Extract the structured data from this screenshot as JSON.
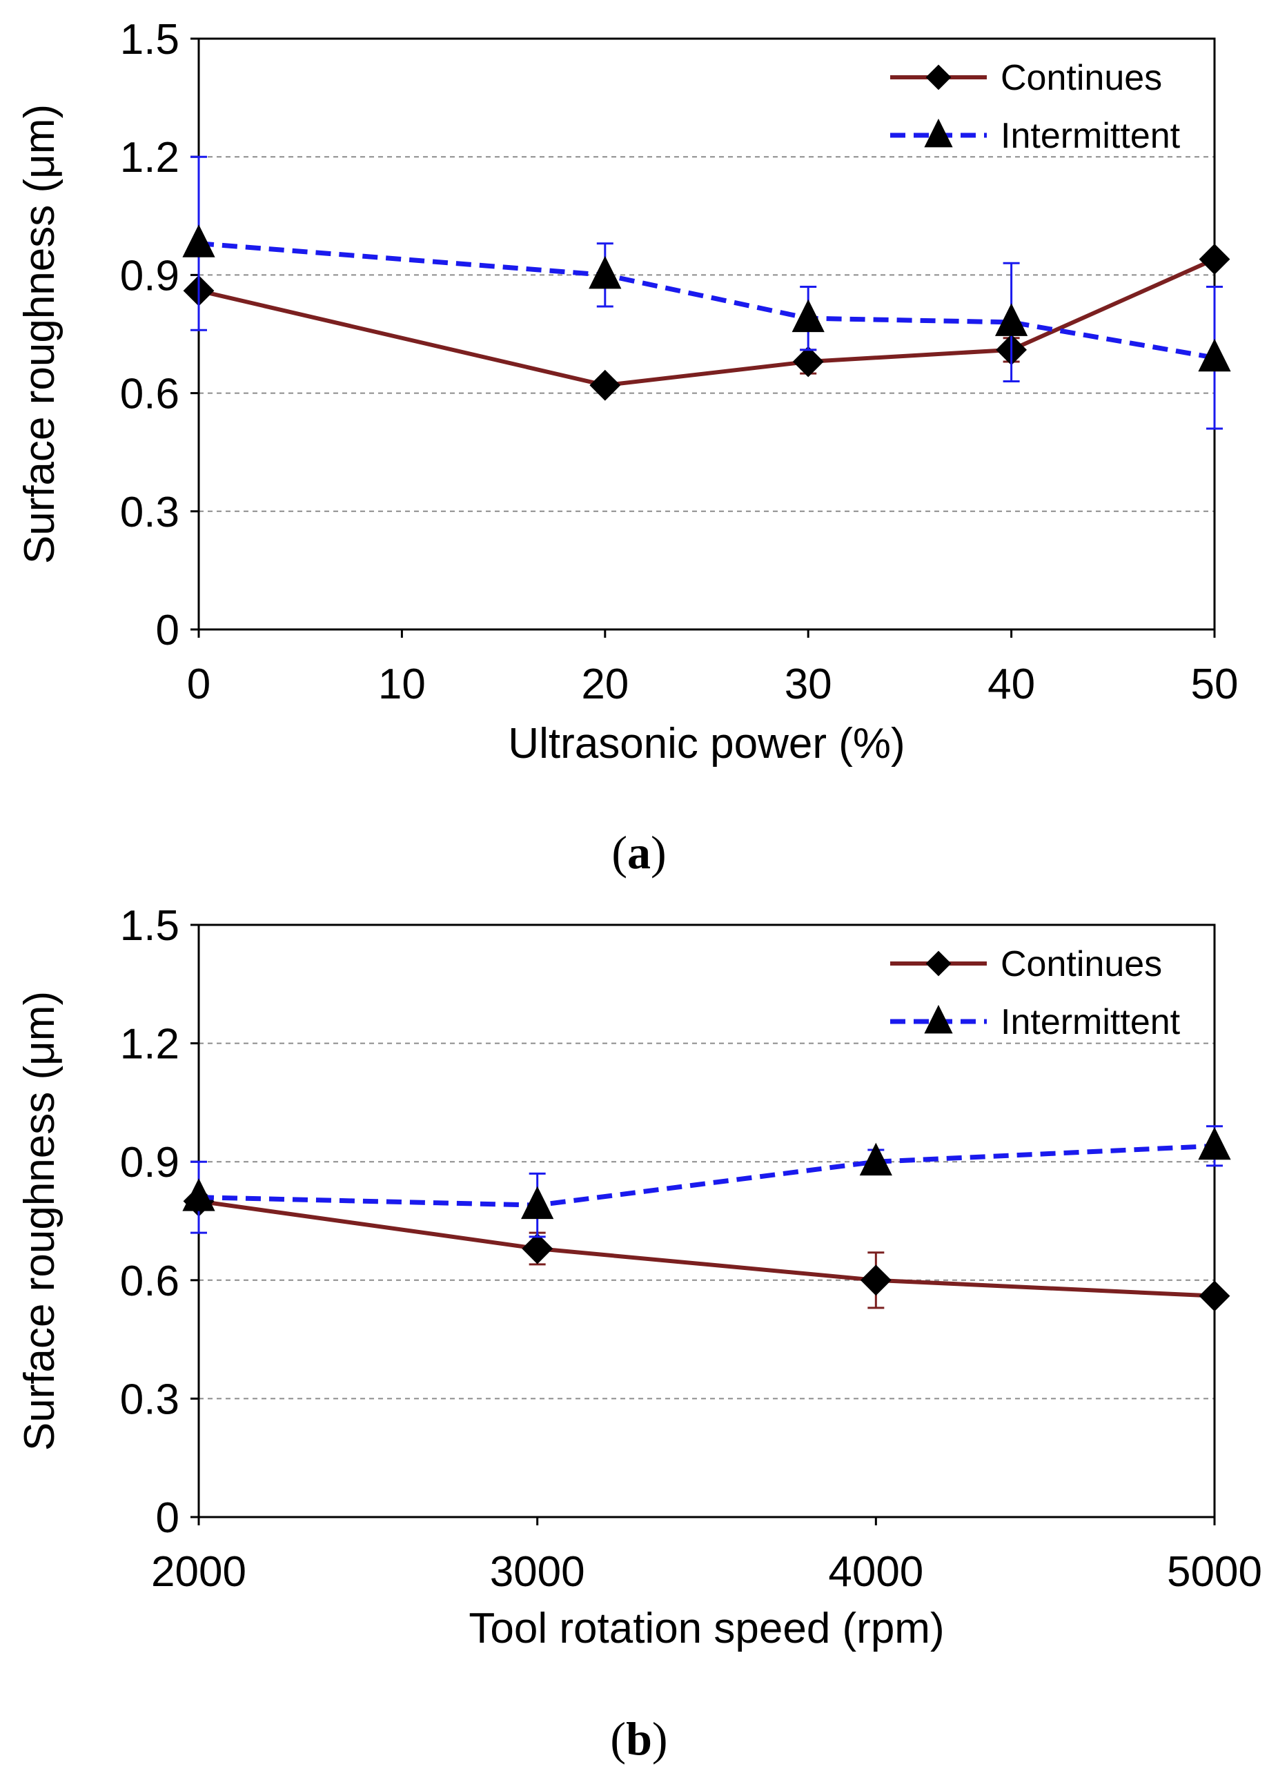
{
  "chart_data": [
    {
      "type": "line",
      "panel_label": "a",
      "xlabel": "Ultrasonic power (%)",
      "ylabel": "Surface roughness (μm)",
      "xlim": [
        0,
        50
      ],
      "ylim": [
        0,
        1.5
      ],
      "xticks": [
        0,
        10,
        20,
        30,
        40,
        50
      ],
      "xtick_labels": [
        "0",
        "10",
        "20",
        "30",
        "40",
        "50"
      ],
      "yticks": [
        0,
        0.3,
        0.6,
        0.9,
        1.2,
        1.5
      ],
      "ytick_labels": [
        "0",
        "0.3",
        "0.6",
        "0.9",
        "1.2",
        "1.5"
      ],
      "grid": "horizontal dashed",
      "legend": "top-right",
      "series": [
        {
          "name": "Continues",
          "color": "#7b2020",
          "line_style": "solid",
          "marker": "diamond",
          "x": [
            0,
            20,
            30,
            40,
            50
          ],
          "y": [
            0.86,
            0.62,
            0.68,
            0.71,
            0.94
          ],
          "yerr": [
            0.0,
            0.0,
            0.03,
            0.03,
            0.0
          ]
        },
        {
          "name": "Intermittent",
          "color": "#1a1aee",
          "line_style": "dashed",
          "marker": "triangle",
          "x": [
            0,
            20,
            30,
            40,
            50
          ],
          "y": [
            0.98,
            0.9,
            0.79,
            0.78,
            0.69
          ],
          "yerr": [
            0.22,
            0.08,
            0.08,
            0.15,
            0.18
          ]
        }
      ]
    },
    {
      "type": "line",
      "panel_label": "b",
      "xlabel": "Tool rotation speed (rpm)",
      "ylabel": "Surface roughness (μm)",
      "xlim": [
        2000,
        5000
      ],
      "ylim": [
        0,
        1.5
      ],
      "xticks": [
        2000,
        3000,
        4000,
        5000
      ],
      "xtick_labels": [
        "2000",
        "3000",
        "4000",
        "5000"
      ],
      "yticks": [
        0,
        0.3,
        0.6,
        0.9,
        1.2,
        1.5
      ],
      "ytick_labels": [
        "0",
        "0.3",
        "0.6",
        "0.9",
        "1.2",
        "1.5"
      ],
      "grid": "horizontal dashed",
      "legend": "top-right",
      "series": [
        {
          "name": "Continues",
          "color": "#7b2020",
          "line_style": "solid",
          "marker": "diamond",
          "x": [
            2000,
            3000,
            4000,
            5000
          ],
          "y": [
            0.8,
            0.68,
            0.6,
            0.56
          ],
          "yerr": [
            0.0,
            0.04,
            0.07,
            0.0
          ]
        },
        {
          "name": "Intermittent",
          "color": "#1a1aee",
          "line_style": "dashed",
          "marker": "triangle",
          "x": [
            2000,
            3000,
            4000,
            5000
          ],
          "y": [
            0.81,
            0.79,
            0.9,
            0.94
          ],
          "yerr": [
            0.09,
            0.08,
            0.03,
            0.05
          ]
        }
      ]
    }
  ]
}
